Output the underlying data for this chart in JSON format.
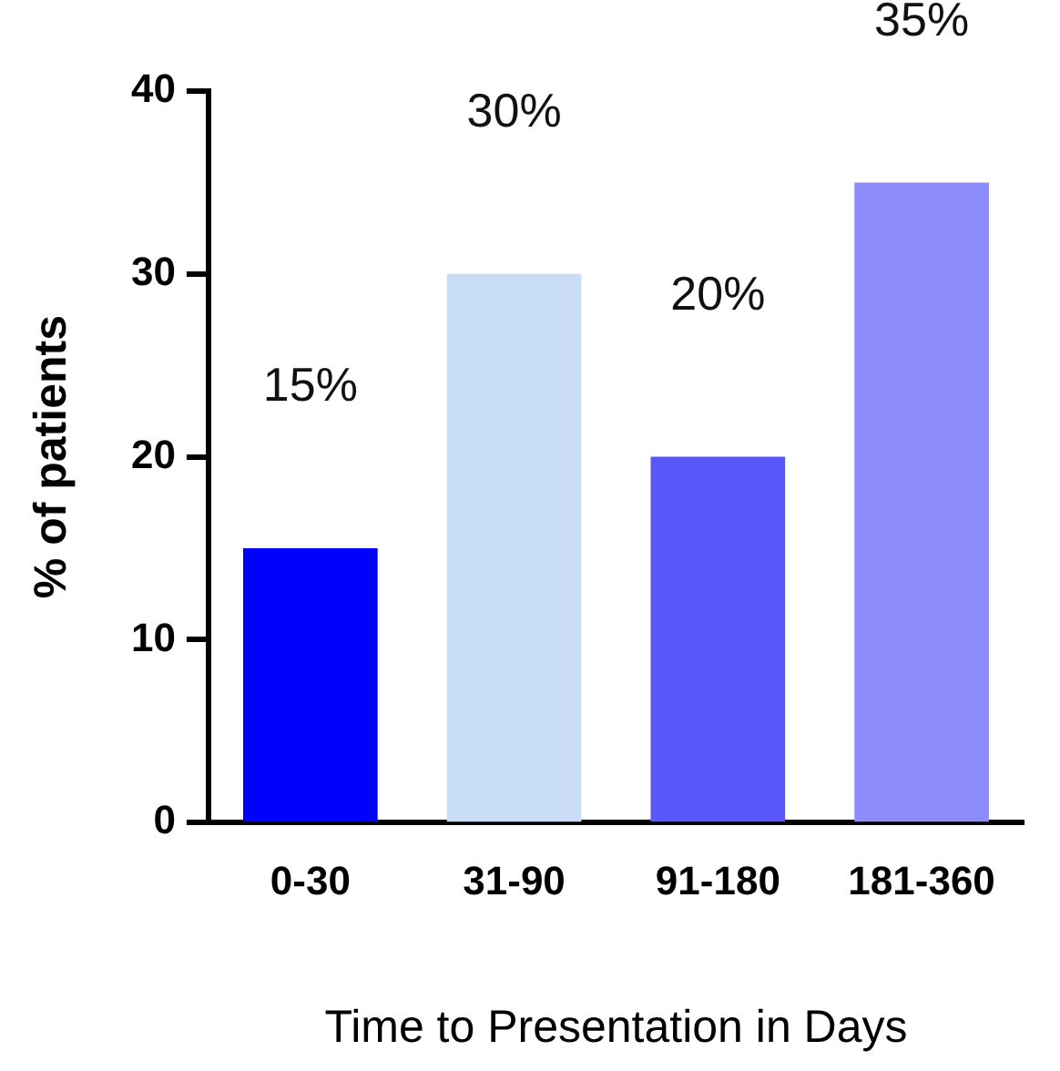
{
  "chart_data": {
    "type": "bar",
    "xlabel": "Time to Presentation in Days",
    "ylabel": "% of patients",
    "categories": [
      "0-30",
      "31-90",
      "91-180",
      "181-360"
    ],
    "values": [
      15,
      30,
      20,
      35
    ],
    "colors": [
      "#0000ff",
      "#c9ddf7",
      "#5858fa",
      "#8c8cfc"
    ],
    "value_labels": [
      "15%",
      "30%",
      "20%",
      "35%"
    ],
    "ylim": [
      0,
      40
    ],
    "yticks": [
      0,
      10,
      20,
      30,
      40
    ],
    "grid": false,
    "legend": false
  }
}
